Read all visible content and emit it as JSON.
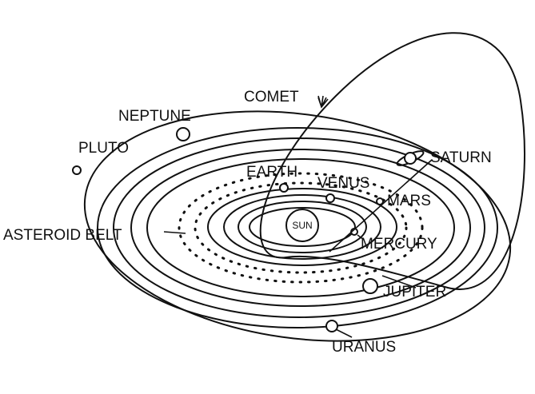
{
  "labels": {
    "comet": "COMET",
    "neptune": "NEPTUNE",
    "pluto": "PLUTO",
    "earth": "EARTH",
    "venus": "VENUS",
    "saturn": "SATURN",
    "mars": "MARS",
    "asteroid_belt": "ASTEROID BELT",
    "sun": "SUN",
    "mercury": "MERCURY",
    "jupiter": "JUPITER",
    "uranus": "URANUS"
  }
}
